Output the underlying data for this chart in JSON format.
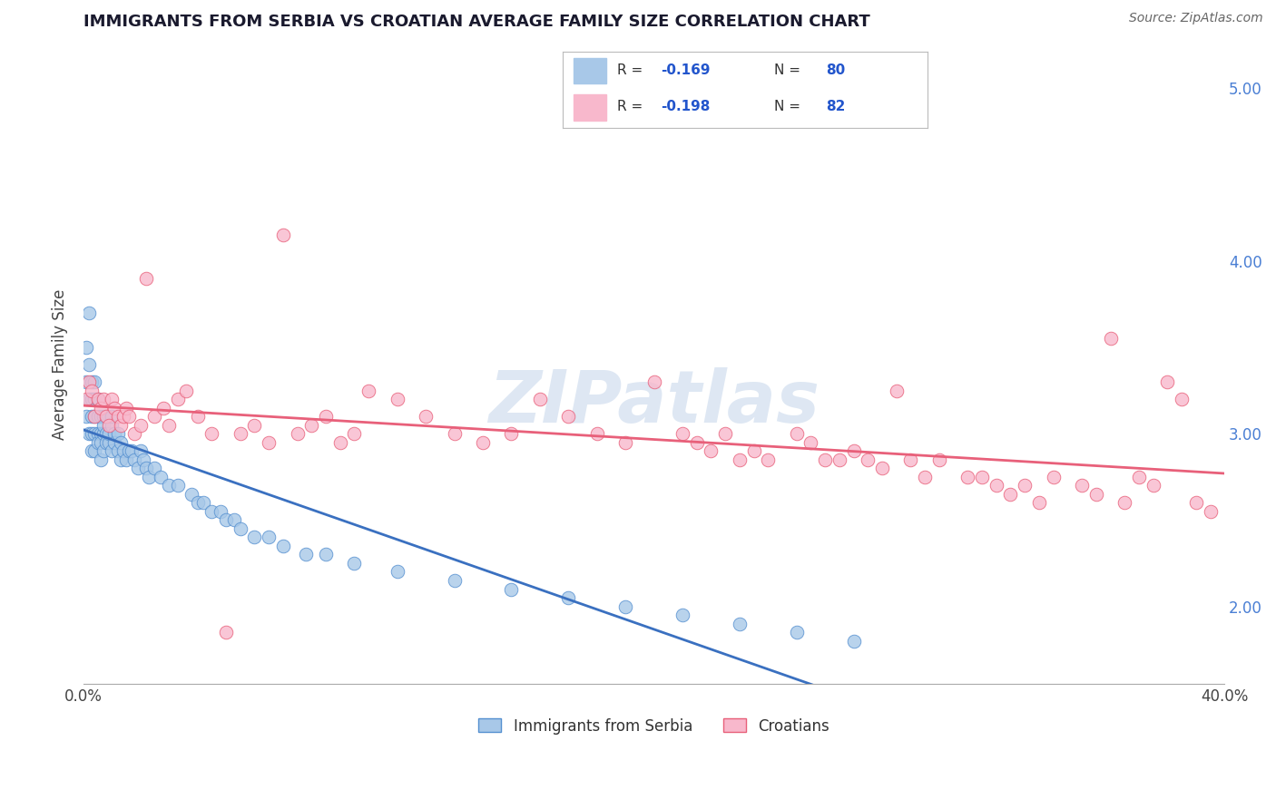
{
  "title": "IMMIGRANTS FROM SERBIA VS CROATIAN AVERAGE FAMILY SIZE CORRELATION CHART",
  "source": "Source: ZipAtlas.com",
  "ylabel": "Average Family Size",
  "series1_label": "Immigrants from Serbia",
  "series2_label": "Croatians",
  "series1_R": -0.169,
  "series1_N": 80,
  "series2_R": -0.198,
  "series2_N": 82,
  "series1_color": "#a8c8e8",
  "series2_color": "#f8b8cc",
  "series1_edge_color": "#5590d0",
  "series2_edge_color": "#e8607a",
  "series1_line_color": "#3a70c0",
  "series2_line_color": "#e8607a",
  "xlim": [
    0.0,
    0.4
  ],
  "ylim": [
    1.55,
    5.25
  ],
  "right_yticks": [
    2.0,
    3.0,
    4.0,
    5.0
  ],
  "right_yticklabels": [
    "2.00",
    "3.00",
    "4.00",
    "5.00"
  ],
  "right_tick_color": "#4a7fd4",
  "grid_color": "#d0d0d0",
  "watermark_text": "ZIPatlas",
  "watermark_color": "#c8d8ec",
  "title_color": "#1a1a2e",
  "series1_x": [
    0.001,
    0.001,
    0.001,
    0.002,
    0.002,
    0.002,
    0.002,
    0.003,
    0.003,
    0.003,
    0.003,
    0.003,
    0.004,
    0.004,
    0.004,
    0.004,
    0.004,
    0.005,
    0.005,
    0.005,
    0.005,
    0.006,
    0.006,
    0.006,
    0.006,
    0.007,
    0.007,
    0.007,
    0.007,
    0.008,
    0.008,
    0.008,
    0.009,
    0.009,
    0.01,
    0.01,
    0.01,
    0.011,
    0.011,
    0.012,
    0.012,
    0.013,
    0.013,
    0.014,
    0.015,
    0.016,
    0.017,
    0.018,
    0.019,
    0.02,
    0.021,
    0.022,
    0.023,
    0.025,
    0.027,
    0.03,
    0.033,
    0.038,
    0.04,
    0.042,
    0.045,
    0.048,
    0.05,
    0.053,
    0.055,
    0.06,
    0.065,
    0.07,
    0.078,
    0.085,
    0.095,
    0.11,
    0.13,
    0.15,
    0.17,
    0.19,
    0.21,
    0.23,
    0.25,
    0.27
  ],
  "series1_y": [
    3.3,
    3.5,
    3.1,
    3.7,
    3.4,
    3.2,
    3.0,
    3.3,
    3.1,
    3.0,
    2.9,
    3.2,
    3.2,
    3.0,
    2.9,
    3.1,
    3.3,
    3.1,
    3.0,
    2.95,
    3.2,
    3.0,
    2.95,
    3.1,
    2.85,
    3.0,
    3.1,
    2.9,
    3.05,
    3.0,
    2.95,
    3.1,
    2.95,
    3.0,
    3.05,
    2.9,
    3.1,
    3.0,
    2.95,
    2.9,
    3.0,
    2.95,
    2.85,
    2.9,
    2.85,
    2.9,
    2.9,
    2.85,
    2.8,
    2.9,
    2.85,
    2.8,
    2.75,
    2.8,
    2.75,
    2.7,
    2.7,
    2.65,
    2.6,
    2.6,
    2.55,
    2.55,
    2.5,
    2.5,
    2.45,
    2.4,
    2.4,
    2.35,
    2.3,
    2.3,
    2.25,
    2.2,
    2.15,
    2.1,
    2.05,
    2.0,
    1.95,
    1.9,
    1.85,
    1.8
  ],
  "series2_x": [
    0.001,
    0.002,
    0.003,
    0.004,
    0.005,
    0.006,
    0.007,
    0.008,
    0.009,
    0.01,
    0.011,
    0.012,
    0.013,
    0.014,
    0.015,
    0.016,
    0.018,
    0.02,
    0.022,
    0.025,
    0.028,
    0.03,
    0.033,
    0.036,
    0.04,
    0.045,
    0.05,
    0.055,
    0.06,
    0.065,
    0.07,
    0.075,
    0.08,
    0.085,
    0.09,
    0.095,
    0.1,
    0.11,
    0.12,
    0.13,
    0.14,
    0.15,
    0.16,
    0.17,
    0.18,
    0.19,
    0.2,
    0.21,
    0.215,
    0.22,
    0.225,
    0.23,
    0.235,
    0.24,
    0.25,
    0.255,
    0.26,
    0.265,
    0.27,
    0.275,
    0.28,
    0.285,
    0.29,
    0.295,
    0.3,
    0.31,
    0.315,
    0.32,
    0.325,
    0.33,
    0.335,
    0.34,
    0.35,
    0.355,
    0.36,
    0.365,
    0.37,
    0.375,
    0.38,
    0.385,
    0.39,
    0.395
  ],
  "series2_y": [
    3.2,
    3.3,
    3.25,
    3.1,
    3.2,
    3.15,
    3.2,
    3.1,
    3.05,
    3.2,
    3.15,
    3.1,
    3.05,
    3.1,
    3.15,
    3.1,
    3.0,
    3.05,
    3.9,
    3.1,
    3.15,
    3.05,
    3.2,
    3.25,
    3.1,
    3.0,
    1.85,
    3.0,
    3.05,
    2.95,
    4.15,
    3.0,
    3.05,
    3.1,
    2.95,
    3.0,
    3.25,
    3.2,
    3.1,
    3.0,
    2.95,
    3.0,
    3.2,
    3.1,
    3.0,
    2.95,
    3.3,
    3.0,
    2.95,
    2.9,
    3.0,
    2.85,
    2.9,
    2.85,
    3.0,
    2.95,
    2.85,
    2.85,
    2.9,
    2.85,
    2.8,
    3.25,
    2.85,
    2.75,
    2.85,
    2.75,
    2.75,
    2.7,
    2.65,
    2.7,
    2.6,
    2.75,
    2.7,
    2.65,
    3.55,
    2.6,
    2.75,
    2.7,
    3.3,
    3.2,
    2.6,
    2.55
  ]
}
